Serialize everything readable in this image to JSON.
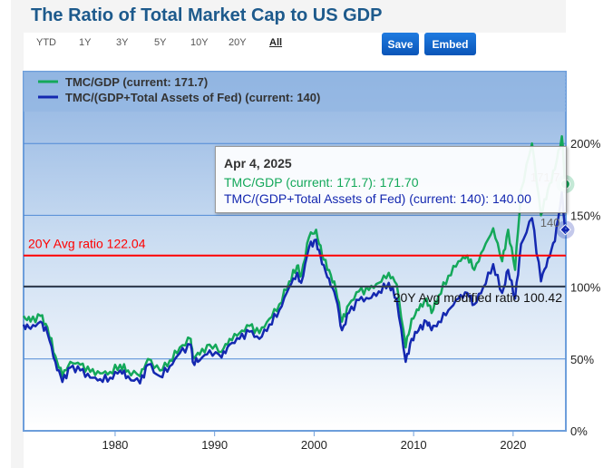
{
  "header": {
    "title": "The Ratio of Total Market Cap to US GDP",
    "ranges": [
      "YTD",
      "1Y",
      "3Y",
      "5Y",
      "10Y",
      "20Y",
      "All"
    ],
    "active_range": "All",
    "save_label": "Save",
    "embed_label": "Embed"
  },
  "tooltip": {
    "date": "Apr 4, 2025",
    "line1": "TMC/GDP (current: 171.7): 171.70",
    "line2": "TMC/(GDP+Total Assets of Fed) (current: 140): 140.00"
  },
  "chart_data": {
    "type": "line",
    "title": "The Ratio of Total Market Cap to US GDP",
    "xlim": [
      1970.8,
      2025.3
    ],
    "ylim": [
      0,
      250
    ],
    "x_ticks": [
      "1980",
      "1990",
      "2000",
      "2010",
      "2020"
    ],
    "y_ticks": [
      "0%",
      "50%",
      "100%",
      "150%",
      "200%"
    ],
    "legend": "top-left",
    "colors": {
      "tmc_gdp": "#14a85a",
      "tmc_fed": "#1428b0",
      "avg": "#ff0000",
      "mod_avg": "#333c4a"
    },
    "reference_lines": [
      {
        "label": "20Y Avg ratio 122.04",
        "value": 122.04
      },
      {
        "label": "20Y Avg modified ratio 100.42",
        "value": 100.42
      }
    ],
    "end_labels": [
      "171.7",
      "140"
    ],
    "series": [
      {
        "name": "TMC/GDP (current: 171.7)",
        "x": [
          1970.8,
          1971.5,
          1972.5,
          1973.2,
          1974,
          1974.7,
          1975.5,
          1976.5,
          1977.5,
          1978.5,
          1979.5,
          1980.5,
          1981.3,
          1982.5,
          1983.3,
          1984.5,
          1985.5,
          1986.5,
          1987.6,
          1987.8,
          1988.5,
          1989.5,
          1990.7,
          1991.5,
          1992.5,
          1993.5,
          1994.5,
          1995.5,
          1996.5,
          1997.5,
          1998.3,
          1998.7,
          1999.5,
          2000.2,
          2000.8,
          2001.5,
          2002.2,
          2002.8,
          2003.5,
          2004.5,
          2005.5,
          2006.5,
          2007.5,
          2008.3,
          2009.2,
          2009.8,
          2010.5,
          2011.3,
          2011.8,
          2012.5,
          2013.5,
          2014.5,
          2015.4,
          2016.1,
          2017,
          2018,
          2018.9,
          2019.5,
          2020.2,
          2020.8,
          2021.9,
          2022.8,
          2023.5,
          2024.2,
          2024.9,
          2025.25
        ],
        "values": [
          80,
          76,
          80,
          72,
          52,
          38,
          48,
          46,
          41,
          40,
          41,
          46,
          42,
          38,
          50,
          42,
          49,
          58,
          64,
          52,
          53,
          60,
          55,
          64,
          68,
          73,
          68,
          78,
          88,
          104,
          115,
          108,
          135,
          140,
          122,
          112,
          98,
          76,
          88,
          97,
          98,
          103,
          110,
          102,
          58,
          78,
          84,
          92,
          82,
          94,
          108,
          118,
          122,
          112,
          126,
          141,
          118,
          140,
          112,
          168,
          200,
          150,
          168,
          182,
          205,
          171.7
        ]
      },
      {
        "name": "TMC/(GDP+Total Assets of Fed) (current: 140)",
        "x": [
          1970.8,
          1971.5,
          1972.5,
          1973.2,
          1974,
          1974.7,
          1975.5,
          1976.5,
          1977.5,
          1978.5,
          1979.5,
          1980.5,
          1981.3,
          1982.5,
          1983.3,
          1984.5,
          1985.5,
          1986.5,
          1987.6,
          1987.8,
          1988.5,
          1989.5,
          1990.7,
          1991.5,
          1992.5,
          1993.5,
          1994.5,
          1995.5,
          1996.5,
          1997.5,
          1998.3,
          1998.7,
          1999.5,
          2000.2,
          2000.8,
          2001.5,
          2002.2,
          2002.8,
          2003.5,
          2004.5,
          2005.5,
          2006.5,
          2007.5,
          2008.3,
          2009.2,
          2009.8,
          2010.5,
          2011.3,
          2011.8,
          2012.5,
          2013.5,
          2014.5,
          2015.4,
          2016.1,
          2017,
          2018,
          2018.9,
          2019.5,
          2020.2,
          2020.8,
          2021.9,
          2022.8,
          2023.5,
          2024.2,
          2024.9,
          2025.25
        ],
        "values": [
          74,
          71,
          76,
          68,
          48,
          34,
          44,
          42,
          37,
          36,
          37,
          42,
          38,
          33,
          46,
          38,
          45,
          54,
          60,
          48,
          49,
          56,
          51,
          60,
          64,
          69,
          64,
          74,
          84,
          100,
          110,
          103,
          128,
          133,
          116,
          106,
          92,
          70,
          82,
          91,
          92,
          97,
          103,
          92,
          48,
          64,
          70,
          76,
          70,
          76,
          84,
          92,
          96,
          88,
          100,
          116,
          96,
          112,
          92,
          130,
          148,
          104,
          120,
          132,
          166,
          140
        ]
      }
    ]
  }
}
